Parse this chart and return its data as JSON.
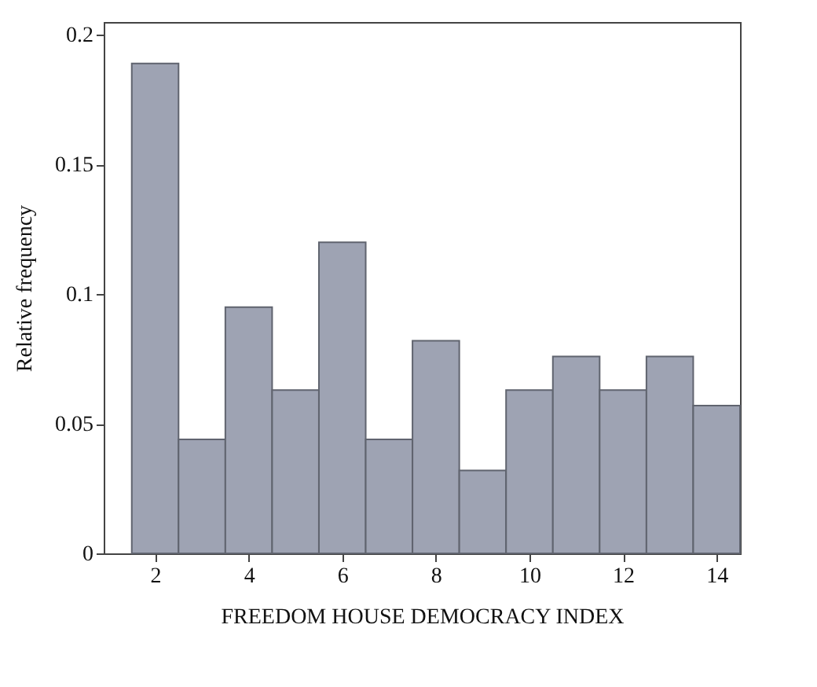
{
  "chart_data": {
    "type": "histogram",
    "xlabel": "FREEDOM HOUSE DEMOCRACY INDEX",
    "ylabel": "Relative frequency",
    "bins": [
      1.5,
      2.5,
      3.5,
      4.5,
      5.5,
      6.5,
      7.5,
      8.5,
      9.5,
      10.5,
      11.5,
      12.5,
      13.5,
      14.5
    ],
    "values": [
      0.189,
      0.044,
      0.095,
      0.063,
      0.12,
      0.044,
      0.082,
      0.032,
      0.063,
      0.076,
      0.063,
      0.076,
      0.057
    ],
    "color": "#9ea3b3",
    "xlim": [
      0.9,
      14.5
    ],
    "xticks": [
      2,
      4,
      6,
      8,
      10,
      12,
      14
    ],
    "ylim": [
      0,
      0.205
    ],
    "yticks": [
      0,
      0.05,
      0.1,
      0.15,
      0.2
    ],
    "grid": false
  }
}
